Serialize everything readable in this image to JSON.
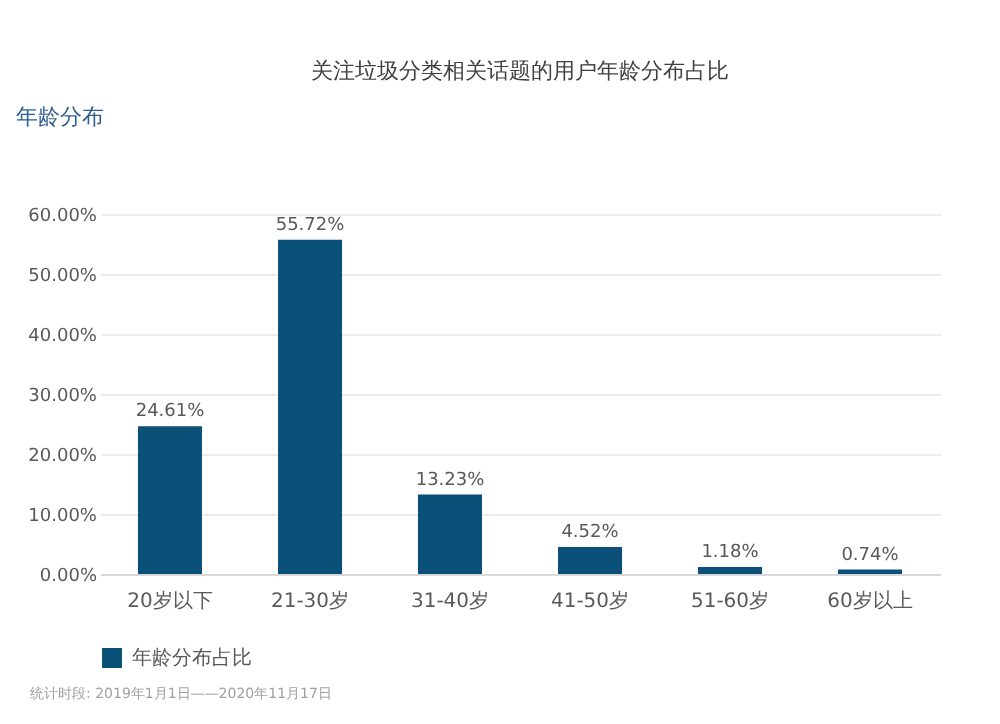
{
  "chart_data": {
    "type": "bar",
    "title": "年龄分布",
    "subtitle": "关注垃圾分类相关话题的用户年龄分布占比",
    "categories": [
      "20岁以下",
      "21-30岁",
      "31-40岁",
      "41-50岁",
      "51-60岁",
      "60岁以上"
    ],
    "series": [
      {
        "name": "年龄分布占比",
        "color": "#0b5079",
        "values": [
          24.61,
          55.72,
          13.23,
          4.52,
          1.18,
          0.74
        ],
        "value_labels": [
          "24.61%",
          "55.72%",
          "13.23%",
          "4.52%",
          "1.18%",
          "0.74%"
        ]
      }
    ],
    "ylim": [
      0,
      60
    ],
    "yticks": [
      {
        "value": 0,
        "label": "0.00%"
      },
      {
        "value": 10,
        "label": "10.00%"
      },
      {
        "value": 20,
        "label": "20.00%"
      },
      {
        "value": 30,
        "label": "30.00%"
      },
      {
        "value": 40,
        "label": "40.00%"
      },
      {
        "value": 50,
        "label": "50.00%"
      },
      {
        "value": 60,
        "label": "60.00%"
      }
    ],
    "grid": "y",
    "legend": "bottom",
    "annotations": [
      "统计时段: 2019年1月1日——2020年11月17日"
    ]
  }
}
